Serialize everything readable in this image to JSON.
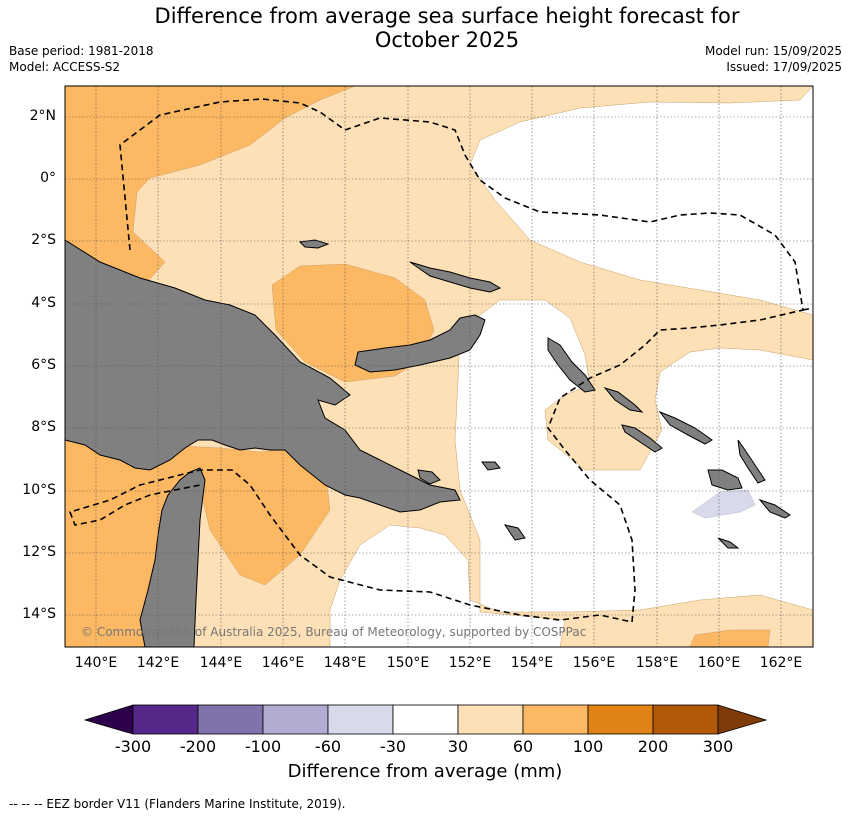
{
  "title": {
    "line1": "Difference from average sea surface height forecast for",
    "line2": "October 2025"
  },
  "meta": {
    "base_period": "Base period: 1981-2018",
    "model": "Model: ACCESS-S2",
    "model_run": "Model run: 15/09/2025",
    "issued": "Issued: 17/09/2025"
  },
  "map": {
    "lat_labels": [
      "2°N",
      "0°",
      "2°S",
      "4°S",
      "6°S",
      "8°S",
      "10°S",
      "12°S",
      "14°S"
    ],
    "lon_labels": [
      "140°E",
      "142°E",
      "144°E",
      "146°E",
      "148°E",
      "150°E",
      "152°E",
      "154°E",
      "156°E",
      "158°E",
      "160°E",
      "162°E"
    ],
    "lat_range": [
      -15,
      3
    ],
    "lon_range": [
      139,
      163
    ],
    "land_color": "#808080",
    "copyright": "© Commonwealth of Australia 2025, Bureau of Meteorology, supported by COSPPac"
  },
  "colorbar": {
    "ticks": [
      "-300",
      "-200",
      "-100",
      "-60",
      "-30",
      "30",
      "60",
      "100",
      "200",
      "300"
    ],
    "colors": [
      "#2d004b",
      "#542788",
      "#8073ac",
      "#b2abd2",
      "#d8daeb",
      "#ffffff",
      "#fee0b6",
      "#fdb863",
      "#e08214",
      "#b35806",
      "#7f3b08"
    ],
    "title": "Difference from average (mm)"
  },
  "footnote": "--  --  -- EEZ border V11 (Flanders Marine Institute, 2019)."
}
